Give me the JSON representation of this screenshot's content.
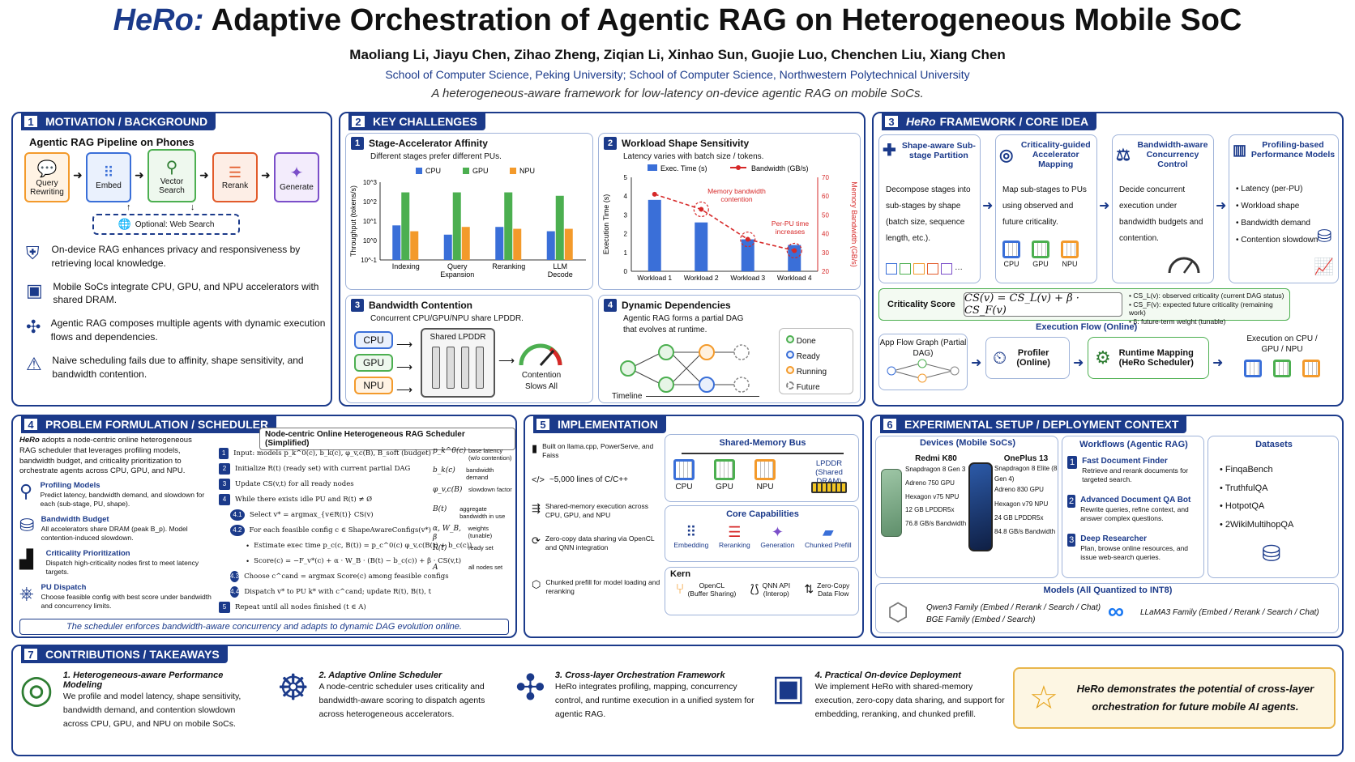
{
  "header": {
    "title_brand": "HeRo:",
    "title_rest": "Adaptive Orchestration of Agentic RAG on Heterogeneous Mobile SoC",
    "authors": "Maoliang Li, Jiayu Chen, Zihao Zheng, Ziqian Li, Xinhao Sun, Guojie Luo, Chenchen Liu, Xiang Chen",
    "affiliations": "School of Computer Science, Peking University; School of Computer Science, Northwestern Polytechnical University",
    "tagline": "A heterogeneous-aware framework for low-latency on-device agentic RAG on mobile SoCs."
  },
  "s1": {
    "num": "1",
    "title": "MOTIVATION / BACKGROUND",
    "pipeline_title": "Agentic RAG Pipeline on Phones",
    "stages": [
      "Query Rewriting",
      "Embed",
      "Vector Search",
      "Rerank",
      "Generate"
    ],
    "web": "Optional: Web Search",
    "bullets": [
      "On-device RAG enhances privacy and responsiveness by retrieving local knowledge.",
      "Mobile SoCs integrate CPU, GPU, and NPU accelerators with shared DRAM.",
      "Agentic RAG composes multiple agents with dynamic execution flows and dependencies.",
      "Naive scheduling fails due to affinity, shape sensitivity, and bandwidth contention."
    ]
  },
  "s2": {
    "num": "2",
    "title": "KEY CHALLENGES",
    "c1_num": "1",
    "c1_title": "Stage-Accelerator Affinity",
    "c1_sub": "Different stages prefer different PUs.",
    "c2_num": "2",
    "c2_title": "Workload Shape Sensitivity",
    "c2_sub": "Latency varies with batch size / tokens.",
    "c3_num": "3",
    "c3_title": "Bandwidth Contention",
    "c3_sub": "Concurrent CPU/GPU/NPU share LPDDR.",
    "c3_pus": [
      "CPU",
      "GPU",
      "NPU"
    ],
    "c3_mem": "Shared LPDDR",
    "c3_gauge": "Contention Slows All",
    "c4_num": "4",
    "c4_title": "Dynamic Dependencies",
    "c4_sub": "Agentic RAG forms a partial DAG that evolves at runtime.",
    "c4_legend": [
      "Done",
      "Ready",
      "Running",
      "Future"
    ],
    "c4_timeline": "Timeline"
  },
  "chart_data": [
    {
      "type": "bar",
      "title": "",
      "ylabel": "Throughput (tokens/s)",
      "yscale": "log",
      "ylim": [
        0.1,
        1000
      ],
      "yticks": [
        "10^-1",
        "10^0",
        "10^1",
        "10^2",
        "10^3"
      ],
      "categories": [
        "Indexing",
        "Query Expansion",
        "Reranking",
        "LLM Decode"
      ],
      "legend": "top",
      "series": [
        {
          "name": "CPU",
          "color": "#3a6fd8",
          "values": [
            6,
            2,
            5,
            3
          ]
        },
        {
          "name": "GPU",
          "color": "#4caf50",
          "values": [
            300,
            300,
            300,
            200
          ]
        },
        {
          "name": "NPU",
          "color": "#f39a2b",
          "values": [
            3,
            5,
            4,
            4
          ]
        }
      ]
    },
    {
      "type": "bar+line",
      "ylabel": "Execution Time (s)",
      "y2label": "Memory Bandwidth (GB/s)",
      "ylim": [
        0,
        5
      ],
      "y2lim": [
        20,
        70
      ],
      "yticks": [
        0,
        1,
        2,
        3,
        4,
        5
      ],
      "y2ticks": [
        20,
        30,
        40,
        50,
        60,
        70
      ],
      "categories": [
        "Workload 1",
        "Workload 2",
        "Workload 3",
        "Workload 4"
      ],
      "series": [
        {
          "name": "Exec. Time (s)",
          "color": "#3a6fd8",
          "type": "bar",
          "values": [
            3.8,
            2.6,
            1.7,
            1.4
          ]
        },
        {
          "name": "Bandwidth (GB/s)",
          "color": "#d62828",
          "type": "line",
          "values": [
            61,
            53,
            37,
            31
          ]
        }
      ],
      "annotations": [
        "Memory bandwidth contention",
        "Per-PU time increases"
      ]
    }
  ],
  "s3": {
    "num": "3",
    "title_brand": "HeRo",
    "title": "FRAMEWORK / CORE IDEA",
    "cols": [
      {
        "title": "Shape-aware Sub-stage Partition",
        "body": "Decompose stages into sub-stages by shape (batch size, sequence length, etc.)."
      },
      {
        "title": "Criticality-guided Accelerator Mapping",
        "body": "Map sub-stages to PUs using observed and future criticality."
      },
      {
        "title": "Bandwidth-aware Concurrency Control",
        "body": "Decide concurrent execution under bandwidth budgets and contention."
      },
      {
        "title": "Profiling-based Performance Models",
        "bullets": [
          "Latency (per-PU)",
          "Workload shape",
          "Bandwidth demand",
          "Contention slowdown"
        ]
      }
    ],
    "pus": [
      "CPU",
      "GPU",
      "NPU"
    ],
    "crit_label": "Criticality Score",
    "crit_formula": "CS(v) = CS_L(v) + β · CS_F(v)",
    "crit_notes": [
      "CS_L(v): observed criticality (current DAG status)",
      "CS_F(v): expected future criticality (remaining work)",
      "β: future-term weight (tunable)"
    ],
    "flow_title": "Execution Flow (Online)",
    "flow": [
      "App Flow Graph (Partial DAG)",
      "Profiler (Online)",
      "Runtime Mapping (HeRo Scheduler)",
      "Execution on CPU / GPU / NPU"
    ]
  },
  "s4": {
    "num": "4",
    "title": "PROBLEM FORMULATION / SCHEDULER",
    "intro_brand": "HeRo",
    "intro": "adopts a node-centric online heterogeneous RAG scheduler that leverages profiling models, bandwidth budget, and criticality prioritization to orchestrate agents across CPU, GPU, and NPU.",
    "items": [
      {
        "title": "Profiling Models",
        "body": "Predict latency, bandwidth demand, and slowdown for each (sub-stage, PU, shape)."
      },
      {
        "title": "Bandwidth Budget",
        "body": "All accelerators share DRAM (peak B_p). Model contention-induced slowdown."
      },
      {
        "title": "Criticality Prioritization",
        "body": "Dispatch high-criticality nodes first to meet latency targets."
      },
      {
        "title": "PU Dispatch",
        "body": "Choose feasible config with best score under bandwidth and concurrency limits."
      }
    ],
    "algo_title": "Node-centric Online Heterogeneous RAG Scheduler (Simplified)",
    "steps": [
      {
        "n": "1",
        "t": "Input: models p_k^0(c), b_k(c), φ_v,c(B), B_soft (budget)"
      },
      {
        "n": "2",
        "t": "Initialize R(t) (ready set) with current partial DAG"
      },
      {
        "n": "3",
        "t": "Update CS(v,t) for all ready nodes"
      },
      {
        "n": "4",
        "t": "While there exists idle PU and R(t) ≠ Ø"
      },
      {
        "n": "4.1",
        "t": "Select v* = argmax_{v∈R(t)} CS(v)"
      },
      {
        "n": "4.2",
        "t": "For each feasible config c ∈ ShapeAwareConfigs(v*)"
      },
      {
        "n": "•",
        "t": "Estimate exec time p_c(c, B(t)) = p_c^0(c) φ_v,c(B(t) + b_c(c))"
      },
      {
        "n": "•",
        "t": "Score(c) = −F_v*(c) + α · W_B · (B(t) − b_c(c)) + β · CS(v,t)"
      },
      {
        "n": "4.3",
        "t": "Choose c^cand = argmax Score(c) among feasible configs"
      },
      {
        "n": "4.4",
        "t": "Dispatch v* to PU k* with c^cand; update R(t), B(t), t"
      },
      {
        "n": "5",
        "t": "Repeat until all nodes finished (t ∈ A)"
      }
    ],
    "symbols": [
      {
        "s": "p_k^0(c)",
        "d": "base latency (w/o contention)"
      },
      {
        "s": "b_k(c)",
        "d": "bandwidth demand"
      },
      {
        "s": "φ_v,c(B)",
        "d": "slowdown factor"
      },
      {
        "s": "B(t)",
        "d": "aggregate bandwidth in use"
      },
      {
        "s": "α, W_B, β",
        "d": "weights (tunable)"
      },
      {
        "s": "R(t)",
        "d": "ready set"
      },
      {
        "s": "A",
        "d": "all nodes set"
      }
    ],
    "footer": "The scheduler enforces bandwidth-aware concurrency and adapts to dynamic DAG evolution online."
  },
  "s5": {
    "num": "5",
    "title": "IMPLEMENTATION",
    "items": [
      "Built on llama.cpp, PowerServe, and Faiss",
      "~5,000 lines of C/C++",
      "Shared-memory execution across CPU, GPU, and NPU",
      "Zero-copy data sharing via OpenCL and QNN integration",
      "Chunked prefill for model loading and reranking"
    ],
    "bus_title": "Shared-Memory Bus",
    "bus_pus": [
      "CPU",
      "GPU",
      "NPU"
    ],
    "lpddr": "LPDDR (Shared DRAM)",
    "cap_title": "Core Capabilities",
    "caps": [
      "Embedding",
      "Reranking",
      "Generation",
      "Chunked Prefill"
    ],
    "kern_title": "Kern",
    "kern": [
      {
        "a": "OpenCL",
        "b": "(Buffer Sharing)"
      },
      {
        "a": "QNN API",
        "b": "(Interop)"
      },
      {
        "a": "Zero-Copy",
        "b": "Data Flow"
      }
    ]
  },
  "s6": {
    "num": "6",
    "title": "EXPERIMENTAL SETUP / DEPLOYMENT CONTEXT",
    "dev_title": "Devices (Mobile SoCs)",
    "devices": [
      {
        "name": "Redmi K80",
        "specs": [
          "Snapdragon 8 Gen 3",
          "Adreno 750 GPU",
          "Hexagon v75 NPU",
          "12 GB LPDDR5x",
          "76.8 GB/s Bandwidth"
        ]
      },
      {
        "name": "OnePlus 13",
        "specs": [
          "Snapdragon 8 Elite (8 Gen 4)",
          "Adreno 830 GPU",
          "Hexagon v79 NPU",
          "24 GB LPDDR5x",
          "84.8 GB/s Bandwidth"
        ]
      }
    ],
    "wf_title": "Workflows (Agentic RAG)",
    "workflows": [
      {
        "n": "1",
        "title": "Fast Document Finder",
        "body": "Retrieve and rerank documents for targeted search."
      },
      {
        "n": "2",
        "title": "Advanced Document QA Bot",
        "body": "Rewrite queries, refine context, and answer complex questions."
      },
      {
        "n": "3",
        "title": "Deep Researcher",
        "body": "Plan, browse online resources, and issue web-search queries."
      }
    ],
    "ds_title": "Datasets",
    "datasets": [
      "FinqaBench",
      "TruthfulQA",
      "HotpotQA",
      "2WikiMultihopQA"
    ],
    "models_title": "Models (All Quantized to INT8)",
    "models_left": [
      "Qwen3 Family (Embed / Rerank / Search / Chat)",
      "BGE Family (Embed / Search)"
    ],
    "models_right": "LLaMA3 Family (Embed / Rerank / Search / Chat)"
  },
  "s7": {
    "num": "7",
    "title": "CONTRIBUTIONS / TAKEAWAYS",
    "items": [
      {
        "title": "1. Heterogeneous-aware Performance Modeling",
        "body": "We profile and model latency, shape sensitivity, bandwidth demand, and contention slowdown across CPU, GPU, and NPU on mobile SoCs."
      },
      {
        "title": "2. Adaptive Online Scheduler",
        "body": "A node-centric scheduler uses criticality and bandwidth-aware scoring to dispatch agents across heterogeneous accelerators."
      },
      {
        "title": "3. Cross-layer Orchestration Framework",
        "body": "HeRo integrates profiling, mapping, concurrency control, and runtime execution in a unified system for agentic RAG."
      },
      {
        "title": "4. Practical On-device Deployment",
        "body": "We implement HeRo with shared-memory execution, zero-copy data sharing, and support for embedding, reranking, and chunked prefill."
      }
    ],
    "callout": "HeRo demonstrates the potential of cross-layer orchestration for future mobile AI agents."
  },
  "colors": {
    "navy": "#1b3a8a",
    "cpu": "#3a6fd8",
    "gpu": "#4caf50",
    "npu": "#f39a2b",
    "red": "#d62828"
  }
}
